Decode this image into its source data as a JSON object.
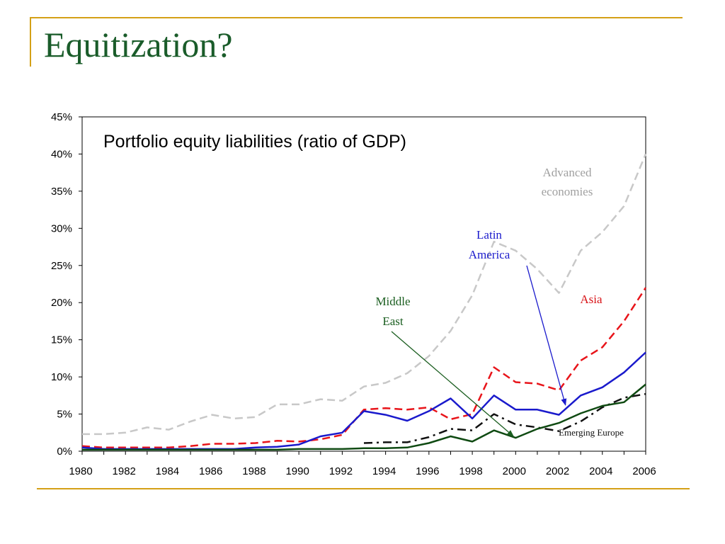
{
  "slide": {
    "title": "Equitization?"
  },
  "chart_data": {
    "type": "line",
    "title": "Portfolio equity liabilities (ratio of GDP)",
    "xlabel": "",
    "ylabel": "",
    "ylim": [
      0,
      45
    ],
    "xlim": [
      1980,
      2006
    ],
    "y_ticks": [
      "0%",
      "5%",
      "10%",
      "15%",
      "20%",
      "25%",
      "30%",
      "35%",
      "40%",
      "45%"
    ],
    "x_ticks": [
      "1980",
      "1982",
      "1984",
      "1986",
      "1988",
      "1990",
      "1992",
      "1994",
      "1996",
      "1998",
      "2000",
      "2002",
      "2004",
      "2006"
    ],
    "grid": false,
    "x": [
      1980,
      1981,
      1982,
      1983,
      1984,
      1985,
      1986,
      1987,
      1988,
      1989,
      1990,
      1991,
      1992,
      1993,
      1994,
      1995,
      1996,
      1997,
      1998,
      1999,
      2000,
      2001,
      2002,
      2003,
      2004,
      2005,
      2006
    ],
    "series": [
      {
        "name": "Advanced economies",
        "color": "#c8c8c8",
        "dash": "dashed",
        "values": [
          2.3,
          2.3,
          2.5,
          3.2,
          2.9,
          4.0,
          4.9,
          4.4,
          4.6,
          6.3,
          6.3,
          7.0,
          6.8,
          8.7,
          9.2,
          10.5,
          12.8,
          16.2,
          21.0,
          28.2,
          27.0,
          24.5,
          21.3,
          27.0,
          29.5,
          33.0,
          40.0
        ]
      },
      {
        "name": "Asia",
        "color": "#e8141a",
        "dash": "dashed",
        "values": [
          0.7,
          0.5,
          0.5,
          0.5,
          0.5,
          0.7,
          1.0,
          1.0,
          1.1,
          1.4,
          1.3,
          1.6,
          2.2,
          5.6,
          5.8,
          5.6,
          5.9,
          4.3,
          5.0,
          11.3,
          9.3,
          9.1,
          8.2,
          12.2,
          14.0,
          17.5,
          22.0
        ]
      },
      {
        "name": "Latin America",
        "color": "#1a1acc",
        "dash": "solid",
        "values": [
          0.5,
          0.3,
          0.3,
          0.3,
          0.3,
          0.3,
          0.3,
          0.3,
          0.5,
          0.6,
          0.9,
          2.0,
          2.5,
          5.4,
          4.9,
          4.1,
          5.4,
          7.1,
          4.4,
          7.5,
          5.6,
          5.6,
          4.9,
          7.5,
          8.6,
          10.6,
          13.3
        ]
      },
      {
        "name": "Emerging Europe",
        "color": "#111111",
        "dash": "dashdot",
        "values": [
          null,
          null,
          null,
          null,
          null,
          null,
          null,
          null,
          null,
          null,
          null,
          null,
          null,
          1.1,
          1.2,
          1.2,
          1.9,
          3.0,
          2.8,
          5.0,
          3.6,
          3.2,
          2.7,
          4.0,
          5.9,
          7.2,
          7.7
        ]
      },
      {
        "name": "Middle East",
        "color": "#0f4a12",
        "dash": "solid",
        "values": [
          0.2,
          0.2,
          0.2,
          0.2,
          0.2,
          0.2,
          0.2,
          0.2,
          0.2,
          0.2,
          0.3,
          0.3,
          0.3,
          0.4,
          0.4,
          0.5,
          1.1,
          2.0,
          1.3,
          2.8,
          1.8,
          3.0,
          3.8,
          5.1,
          6.1,
          6.6,
          9.0
        ]
      }
    ],
    "annotations": [
      {
        "lines": [
          "Advanced",
          "economies"
        ],
        "color": "#a0a0a0",
        "arrow": false
      },
      {
        "lines": [
          "Latin",
          "America"
        ],
        "color": "#1a1acc",
        "arrow": true,
        "arrow_to": [
          2002.3,
          6.2
        ]
      },
      {
        "lines": [
          "Middle",
          "East"
        ],
        "color": "#1b5e20",
        "arrow": true,
        "arrow_to": [
          1999.9,
          2.0
        ]
      },
      {
        "lines": [
          "Asia"
        ],
        "color": "#d81418",
        "arrow": false
      },
      {
        "lines": [
          "Emerging Europe"
        ],
        "color": "#111111",
        "arrow": false
      }
    ]
  }
}
